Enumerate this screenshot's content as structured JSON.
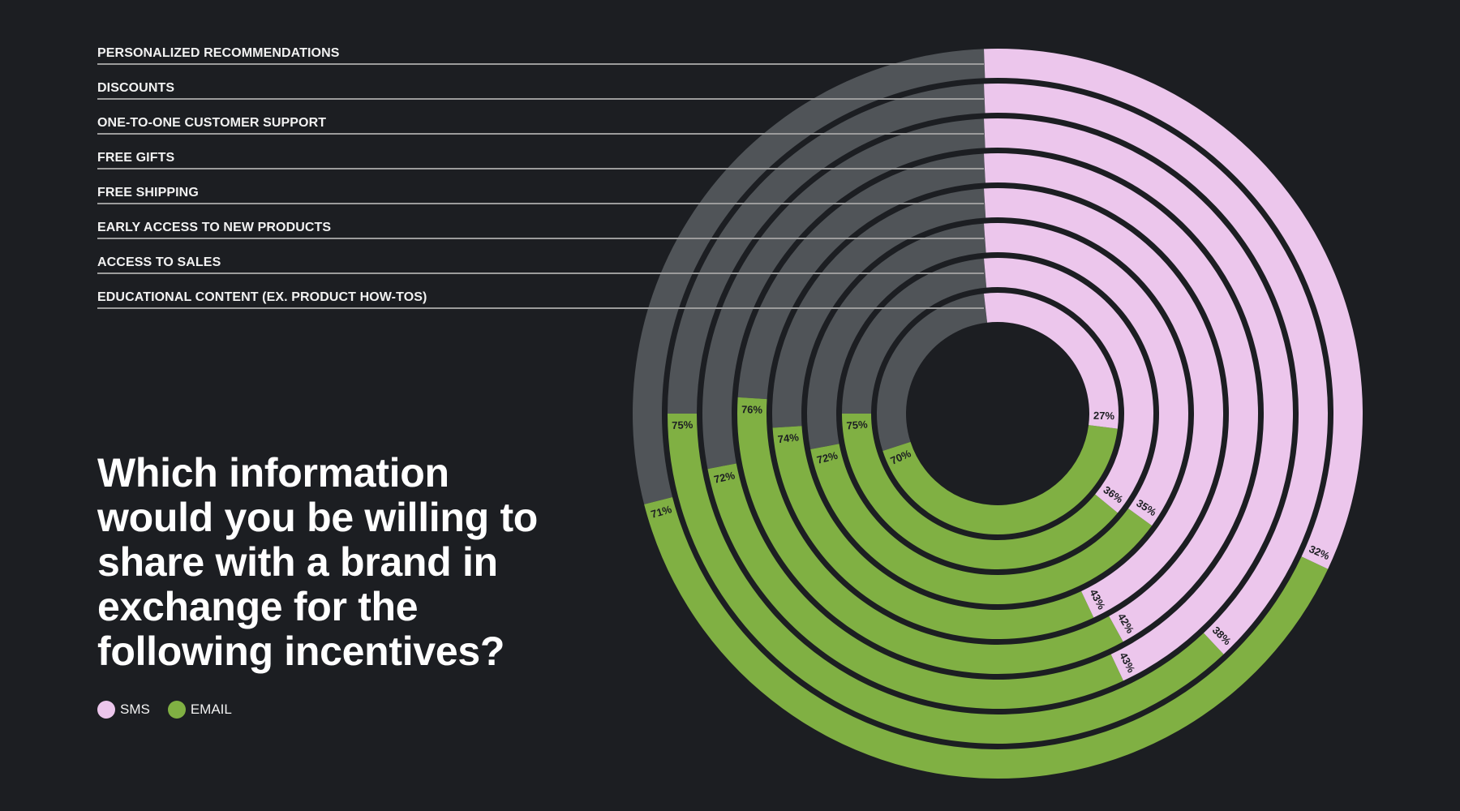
{
  "colors": {
    "background": "#1c1e22",
    "sms": "#ecc6ec",
    "email": "#80b043",
    "track": "#505458",
    "leader_line": "#9c9c9c",
    "label_text": "#1c1e22"
  },
  "title": {
    "lines": [
      "Which information",
      "would you be willing to",
      "share with a brand in",
      "exchange for the",
      "following incentives?"
    ]
  },
  "legend": [
    {
      "label": "SMS",
      "color": "#ecc6ec"
    },
    {
      "label": "EMAIL",
      "color": "#80b043"
    }
  ],
  "chart_data": {
    "type": "radial-bar",
    "title": "Which information would you be willing to share with a brand in exchange for the following incentives?",
    "categories": [
      "PERSONALIZED RECOMMENDATIONS",
      "DISCOUNTS",
      "ONE-TO-ONE CUSTOMER SUPPORT",
      "FREE GIFTS",
      "FREE SHIPPING",
      "EARLY ACCESS TO NEW PRODUCTS",
      "ACCESS TO SALES",
      "EDUCATIONAL CONTENT (EX. PRODUCT HOW-TOS)"
    ],
    "series": [
      {
        "name": "SMS",
        "values": [
          32,
          38,
          43,
          42,
          43,
          35,
          36,
          27
        ],
        "color": "#ecc6ec"
      },
      {
        "name": "EMAIL",
        "values": [
          71,
          75,
          72,
          76,
          74,
          72,
          75,
          70
        ],
        "color": "#80b043"
      }
    ],
    "unit": "%",
    "legend_position": "bottom-left",
    "ring_order": "outermost ring = first category"
  }
}
